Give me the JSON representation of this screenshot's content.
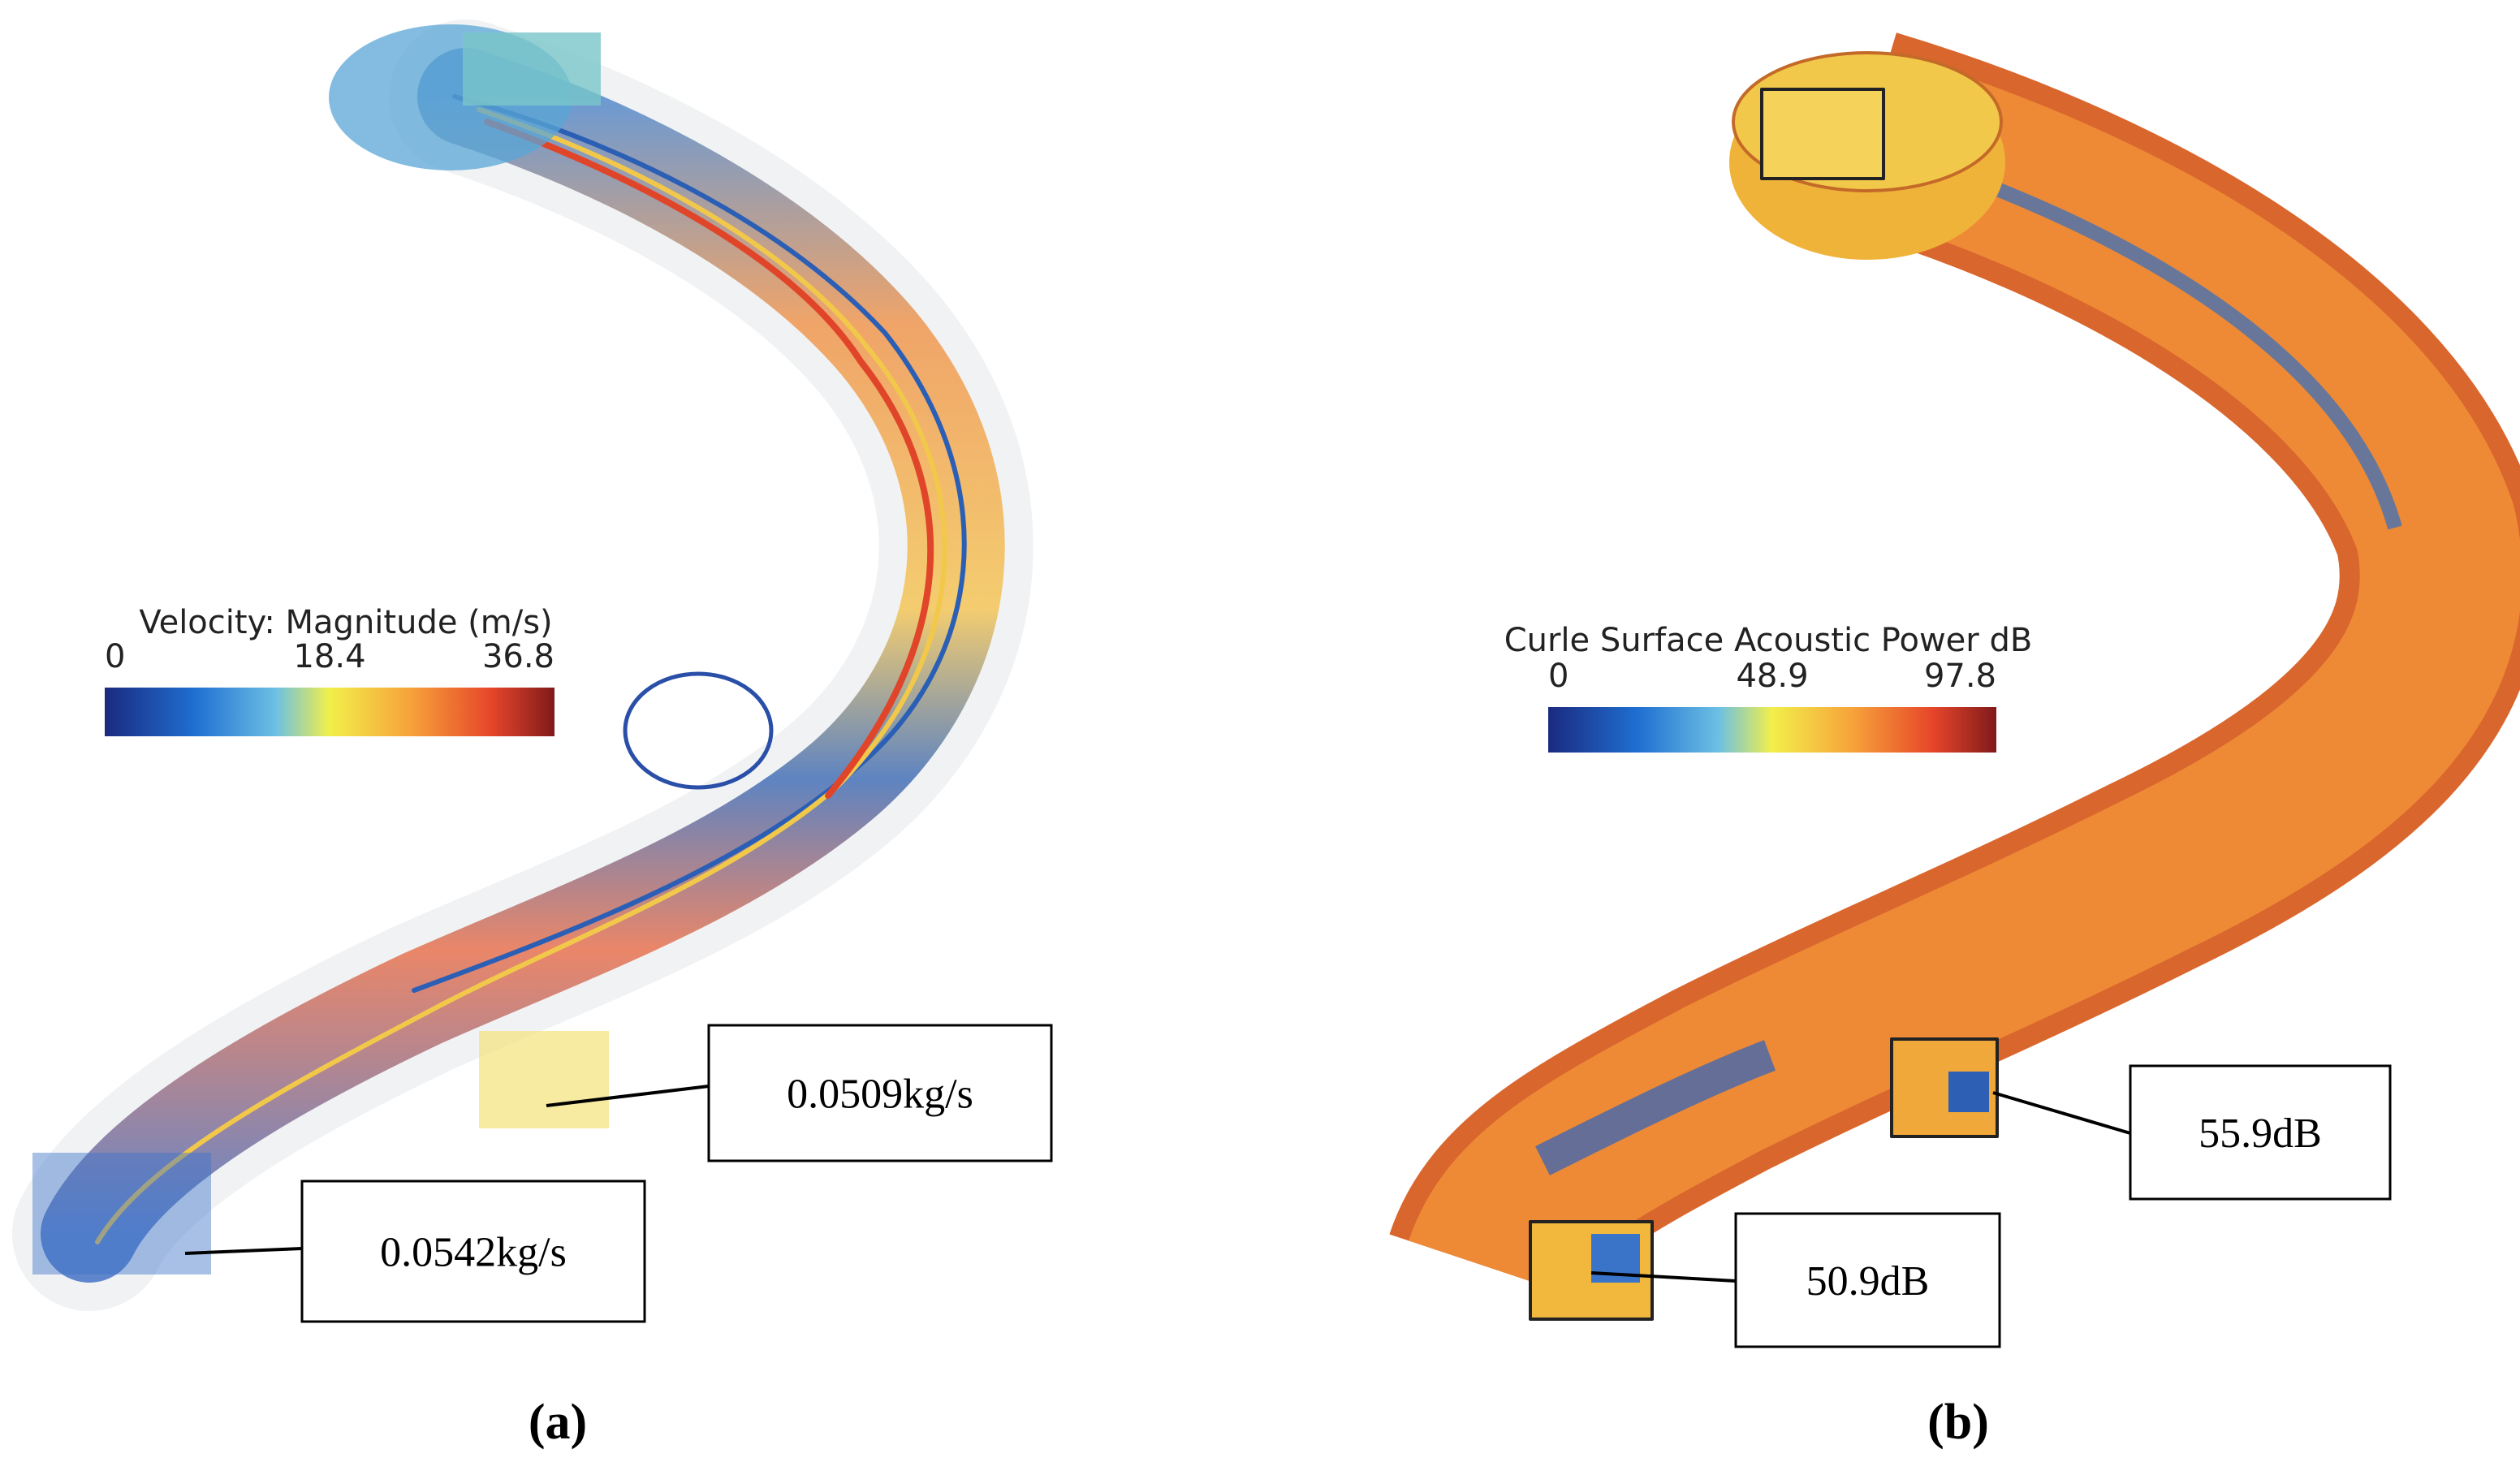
{
  "panels": [
    {
      "legend": {
        "title": "Velocity: Magnitude (m/s)",
        "ticks": [
          0,
          18.4,
          36.8
        ]
      },
      "callouts": [
        "0.0509kg/s",
        "0.0542kg/s"
      ],
      "caption": "(a)"
    },
    {
      "legend": {
        "title": "Curle Surface Acoustic Power dB",
        "ticks": [
          0,
          48.9,
          97.8
        ]
      },
      "callouts": [
        "55.9dB",
        "50.9dB"
      ],
      "caption": "(b)"
    }
  ]
}
